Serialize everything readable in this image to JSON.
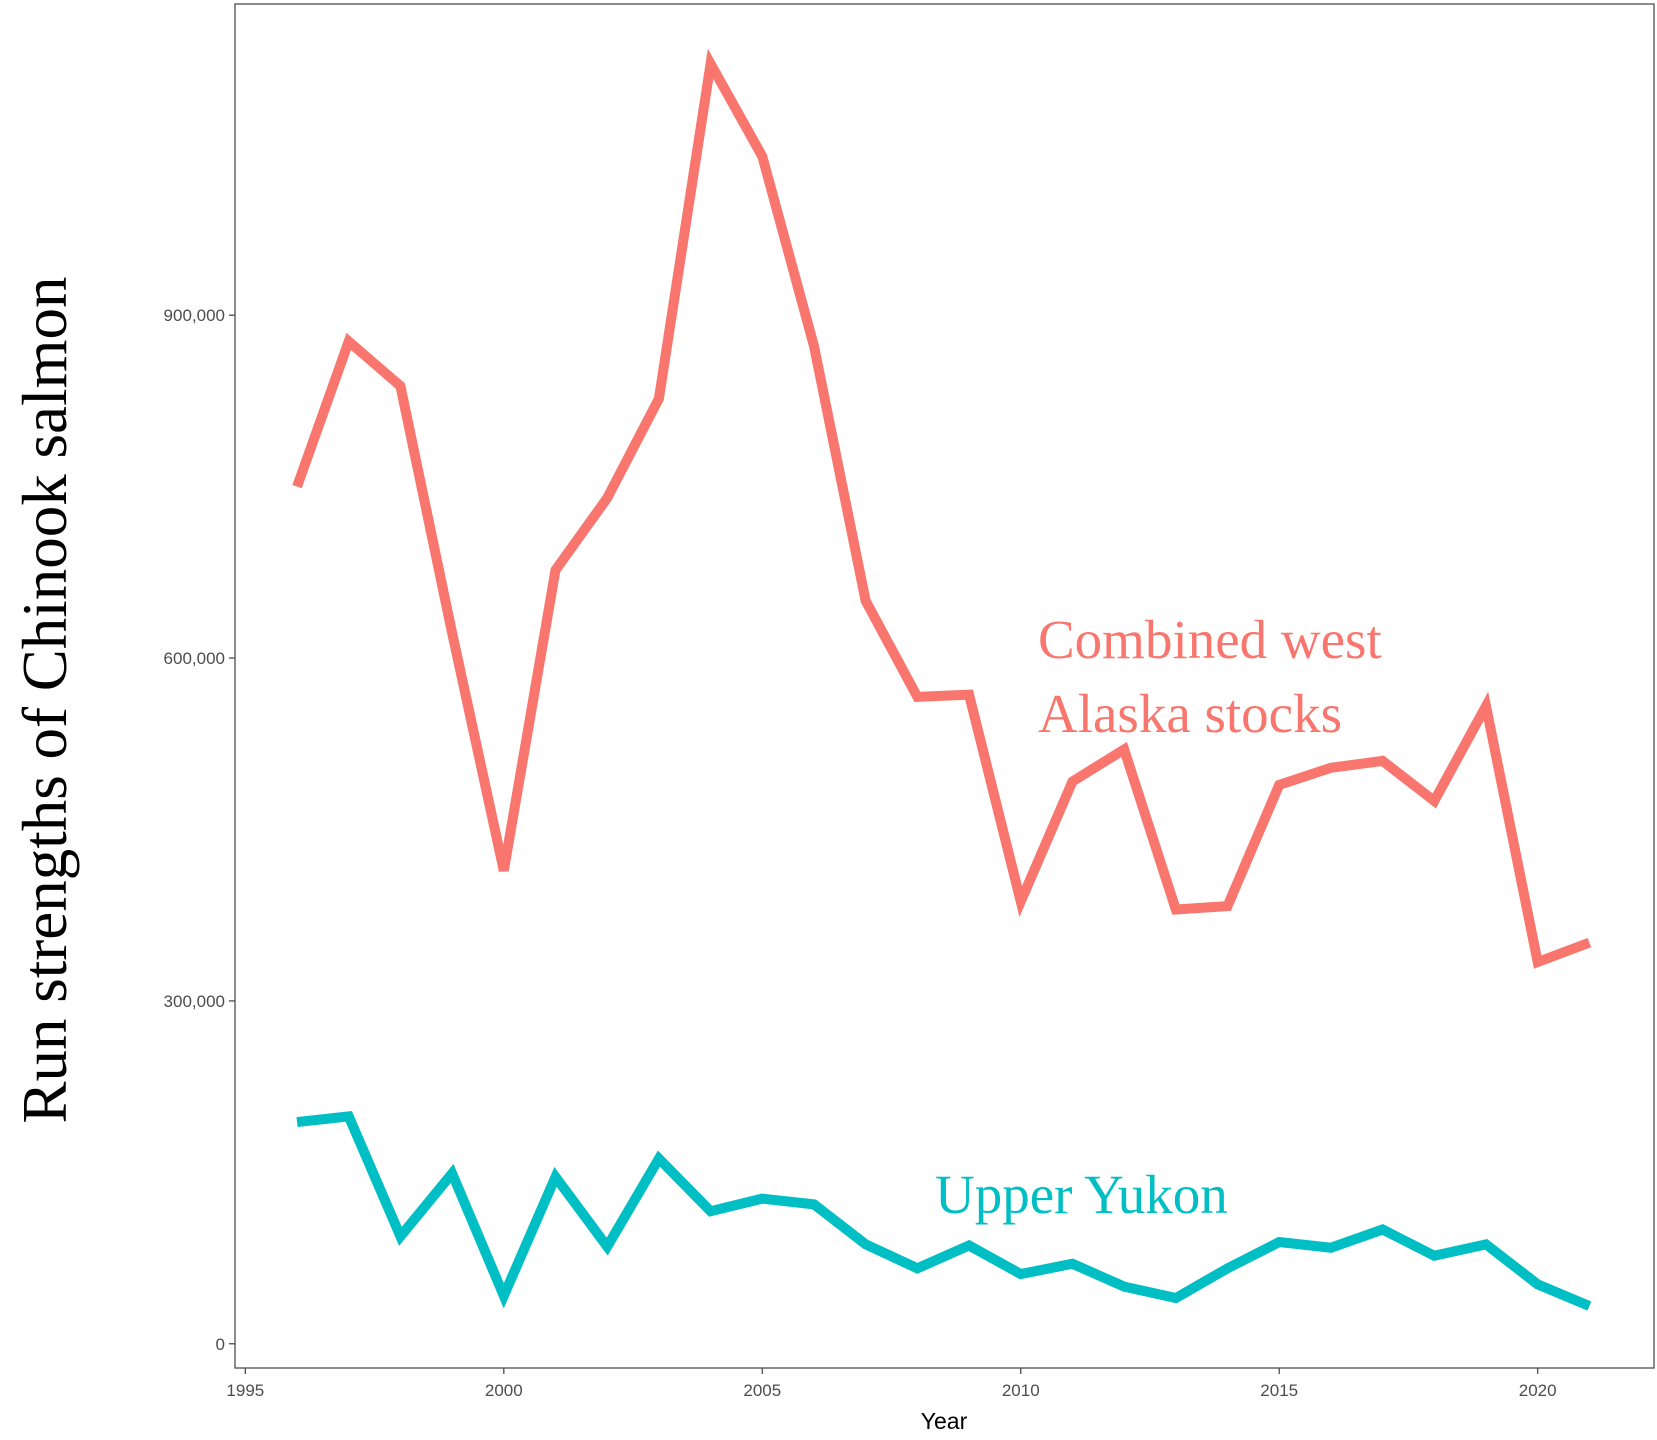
{
  "chart_data": {
    "type": "line",
    "x_label": "Year",
    "y_label": "Run strengths of Chinook salmon",
    "x": [
      1996,
      1997,
      1998,
      1999,
      2000,
      2001,
      2002,
      2003,
      2004,
      2005,
      2006,
      2007,
      2008,
      2009,
      2010,
      2011,
      2012,
      2013,
      2014,
      2015,
      2016,
      2017,
      2018,
      2019,
      2020,
      2021
    ],
    "series": [
      {
        "name": "Combined west Alaska stocks",
        "color": "#f8766d",
        "values": [
          750000,
          877000,
          838000,
          622000,
          414000,
          677000,
          740000,
          827000,
          1120000,
          1039000,
          873000,
          650000,
          566000,
          568000,
          387000,
          492000,
          520000,
          380000,
          383000,
          489000,
          504000,
          510000,
          475000,
          558000,
          334000,
          351000
        ]
      },
      {
        "name": "Upper Yukon",
        "color": "#00bfc4",
        "values": [
          194000,
          199000,
          94000,
          149000,
          42000,
          146000,
          85000,
          162000,
          116000,
          127000,
          122000,
          87000,
          66000,
          86000,
          61000,
          70000,
          50000,
          40000,
          66000,
          89000,
          84000,
          100000,
          77000,
          87000,
          52000,
          33000
        ]
      }
    ],
    "annotations": [
      {
        "lines": [
          "Combined west",
          "Alaska stocks"
        ],
        "color": "#f8766d"
      },
      {
        "lines": [
          "Upper Yukon"
        ],
        "color": "#00bfc4"
      }
    ],
    "xlim": [
      1994.8,
      2022.25
    ],
    "ylim": [
      -21200,
      1172300
    ],
    "xticks": [
      1995,
      2000,
      2005,
      2010,
      2015,
      2020
    ],
    "yticks": [
      0,
      {
        "value": 300000,
        "label": "300,000"
      },
      {
        "value": 600000,
        "label": "600,000"
      },
      {
        "value": 900000,
        "label": "900,000"
      }
    ],
    "grid": false
  }
}
